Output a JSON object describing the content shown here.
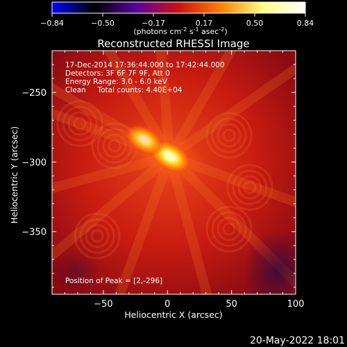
{
  "colorbar": {
    "ticks": [
      "-0.84",
      "-0.50",
      "-0.17",
      "0.17",
      "0.50",
      "0.84"
    ],
    "unit_parts": [
      "(photons cm",
      "-2",
      " s",
      "-1",
      " asec",
      "-2",
      ")"
    ],
    "palette": [
      "#0000ff",
      "#000000",
      "#5a00a0",
      "#d01010",
      "#ff8000",
      "#ffff80",
      "#ffffff"
    ]
  },
  "title": "Reconstructed RHESSI Image",
  "info_lines": [
    "17-Dec-2014 17:36:44.000 to 17:42:44.000",
    "Detectors: 3F 6F 7F 9F, Att 0",
    "Energy Range: 3.0 - 6.0 keV",
    "Clean     Total counts: 4.40E+04"
  ],
  "peak_text": "Position of Peak = [2,-296]",
  "timestamp": "20-May-2022 18:01",
  "axes": {
    "xlabel": "Heliocentric X (arcsec)",
    "ylabel": "Heliocentric Y (arcsec)",
    "xlim": [
      -90,
      100
    ],
    "ylim": [
      -395,
      -220
    ],
    "xticks": [
      -50,
      0,
      50,
      100
    ],
    "xtick_labels": [
      "−50",
      "0",
      "50",
      "100"
    ],
    "yticks": [
      -250,
      -300,
      -350
    ],
    "ytick_labels": [
      "−250",
      "−300",
      "−350"
    ]
  },
  "chart_data": {
    "type": "heatmap",
    "title": "Reconstructed RHESSI Image",
    "xlabel": "Heliocentric X (arcsec)",
    "ylabel": "Heliocentric Y (arcsec)",
    "xlim": [
      -90,
      100
    ],
    "ylim": [
      -395,
      -220
    ],
    "colorbar_range": [
      -0.84,
      0.84
    ],
    "peak": [
      2,
      -296
    ],
    "sources": [
      {
        "x": 2,
        "y": -296,
        "amplitude": 0.84
      },
      {
        "x": -18,
        "y": -284,
        "amplitude": 0.6
      }
    ]
  }
}
